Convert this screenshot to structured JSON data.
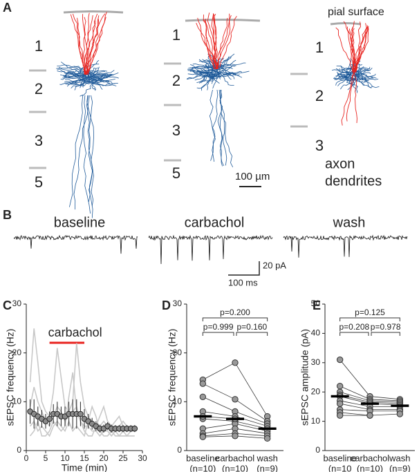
{
  "panel_a": {
    "label": "A",
    "cells": [
      {
        "layers": [
          "1",
          "2",
          "3",
          "5"
        ]
      },
      {
        "layers": [
          "1",
          "2",
          "3",
          "5"
        ]
      },
      {
        "layers": [
          "1",
          "2",
          "3"
        ]
      }
    ],
    "pial_label": "pial surface",
    "scale_label": "100 µm",
    "legend": [
      {
        "name": "axon",
        "color": "#1f5a99"
      },
      {
        "name": "dendrites",
        "color": "#e8231f"
      }
    ]
  },
  "panel_b": {
    "label": "B",
    "conditions": [
      {
        "name": "baseline",
        "color": "#333333"
      },
      {
        "name": "carbachol",
        "color": "#e8231f"
      },
      {
        "name": "wash",
        "color": "#333333"
      }
    ],
    "scale_y": "20 pA",
    "scale_x": "100 ms"
  },
  "chart_data": [
    {
      "type": "line",
      "label": "C",
      "xlabel": "Time (min)",
      "ylabel": "sEPSC frequency (Hz)",
      "xlim": [
        0,
        30
      ],
      "xticks": [
        0,
        5,
        10,
        15,
        20,
        25,
        30
      ],
      "ylim": [
        0,
        30
      ],
      "yticks": [
        0,
        10,
        20,
        30
      ],
      "annotation": {
        "text": "carbachol",
        "x": [
          6,
          15
        ],
        "color": "#e8231f"
      },
      "x": [
        1,
        2,
        3,
        4,
        5,
        6,
        7,
        8,
        9,
        10,
        11,
        12,
        13,
        14,
        15,
        16,
        17,
        18,
        19,
        20,
        21,
        22,
        23,
        24,
        25,
        26,
        27,
        28
      ],
      "series": [
        {
          "color": "#c8c8c8",
          "values": [
            14,
            25,
            18,
            10,
            8,
            7,
            12,
            21,
            15,
            9,
            8,
            10,
            22,
            14,
            9,
            7,
            6,
            5,
            5,
            6,
            5,
            5,
            4,
            5,
            6,
            5,
            4,
            5
          ]
        },
        {
          "color": "#c8c8c8",
          "values": [
            9,
            13,
            10,
            8,
            6,
            5,
            7,
            9,
            8,
            6,
            7,
            8,
            9,
            6,
            5,
            5,
            4,
            4,
            3,
            4,
            4,
            3,
            4,
            3,
            4,
            3,
            4,
            4
          ]
        },
        {
          "color": "#c8c8c8",
          "values": [
            5,
            6,
            4,
            5,
            4,
            3,
            5,
            6,
            5,
            4,
            6,
            4,
            5,
            4,
            3,
            6,
            9,
            7,
            4,
            3,
            3,
            4,
            3,
            3,
            3,
            3,
            3,
            3
          ]
        },
        {
          "color": "#c8c8c8",
          "values": [
            3,
            4,
            6,
            3,
            3,
            4,
            6,
            5,
            4,
            5,
            11,
            16,
            8,
            6,
            4,
            3,
            3,
            5,
            7,
            9,
            6,
            5,
            6,
            7,
            5,
            4,
            5,
            5
          ]
        },
        {
          "color": "#8a8a8a",
          "values": [
            8,
            7.5,
            7,
            6.5,
            6,
            6.5,
            7.5,
            7.5,
            7,
            7,
            7.5,
            7.5,
            7.5,
            7.5,
            6.5,
            6,
            5.5,
            5,
            4.5,
            4.5,
            5,
            4.5,
            4.5,
            4.5,
            4.5,
            4.5,
            4.5,
            4.5
          ],
          "errors": [
            2.5,
            3,
            2,
            1.8,
            1.5,
            1.5,
            2,
            2.5,
            2,
            2,
            2.5,
            3,
            3,
            2.5,
            2,
            1.5,
            1.2,
            1,
            0.8,
            0.8,
            0.8,
            0.8,
            0.7,
            0.7,
            0.7,
            0.7,
            0.7,
            0.7
          ]
        }
      ]
    },
    {
      "type": "paired",
      "label": "D",
      "ylabel": "sEPSC frequency (Hz)",
      "ylim": [
        0,
        30
      ],
      "yticks": [
        0,
        10,
        20,
        30
      ],
      "groups": [
        {
          "name": "baseline",
          "n_label": "(n=10)",
          "color": "#222222",
          "values": [
            14.5,
            13.7,
            11,
            8,
            6.5,
            4.5,
            3.5,
            3,
            2.8,
            7
          ],
          "mean": 7
        },
        {
          "name": "carbachol",
          "n_label": "(n=10)",
          "color": "#e8231f",
          "values": [
            18,
            10.5,
            8,
            7,
            6,
            5.5,
            4.5,
            3.5,
            3,
            6.5
          ],
          "mean": 6.5
        },
        {
          "name": "wash",
          "n_label": "(n=9)",
          "color": "#222222",
          "values": [
            7,
            6,
            5.5,
            5,
            4.5,
            4,
            3.5,
            3,
            2.5
          ],
          "mean": 4.5
        }
      ],
      "comparisons": [
        "p=0.999",
        "p=0.160",
        "p=0.200"
      ]
    },
    {
      "type": "paired",
      "label": "E",
      "ylabel": "sEPSC amplitude (pA)",
      "ylim": [
        0,
        50
      ],
      "yticks": [
        0,
        10,
        20,
        30,
        40,
        50
      ],
      "groups": [
        {
          "name": "baseline",
          "n_label": "(n=10",
          "color": "#222222",
          "values": [
            31,
            22,
            20,
            19,
            18.5,
            17,
            16,
            14,
            13,
            12
          ],
          "mean": 18.5
        },
        {
          "name": "carbachol",
          "n_label": "(n=10)",
          "color": "#e8231f",
          "values": [
            18.5,
            17.5,
            17,
            16.5,
            16,
            15,
            14,
            13.5,
            12,
            12
          ],
          "mean": 16
        },
        {
          "name": "wash",
          "n_label": "(n=9)",
          "color": "#222222",
          "values": [
            17.5,
            17,
            16.5,
            16,
            15.5,
            15,
            14,
            13.5,
            12.5
          ],
          "mean": 15.3
        }
      ],
      "comparisons": [
        "p=0.208",
        "p=0.978",
        "p=0.125"
      ]
    }
  ]
}
